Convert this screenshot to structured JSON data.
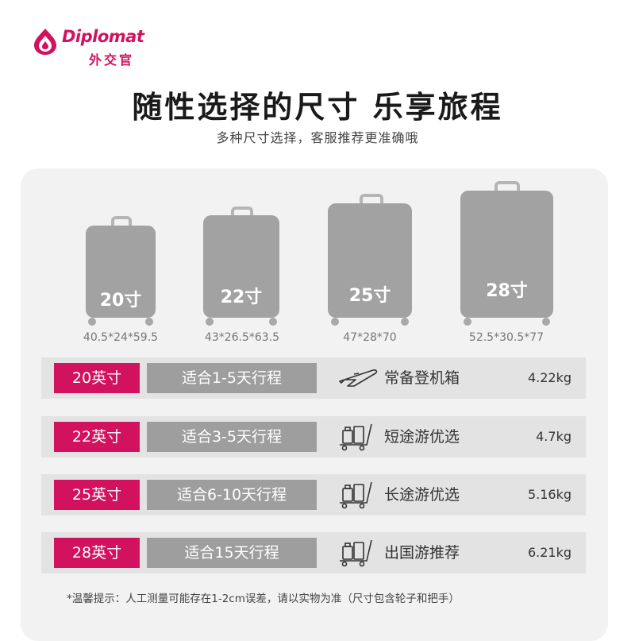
{
  "brand": {
    "name": "Diplomat",
    "cn_name": "外交官"
  },
  "headline": "随性选择的尺寸 乐享旅程",
  "subline": "多种尺寸选择，客服推荐更准确哦",
  "cases": [
    {
      "size": "20寸",
      "dims": "40.5*24*59.5"
    },
    {
      "size": "22寸",
      "dims": "43*26.5*63.5"
    },
    {
      "size": "25寸",
      "dims": "47*28*70"
    },
    {
      "size": "28寸",
      "dims": "52.5*30.5*77"
    }
  ],
  "rows": [
    {
      "inch": "20英寸",
      "trip": "适合1-5天行程",
      "icon": "airplane-icon",
      "desc": "常备登机箱",
      "weight": "4.22kg"
    },
    {
      "inch": "22英寸",
      "trip": "适合3-5天行程",
      "icon": "luggage-cart-icon",
      "desc": "短途游优选",
      "weight": "4.7kg"
    },
    {
      "inch": "25英寸",
      "trip": "适合6-10天行程",
      "icon": "luggage-cart-icon",
      "desc": "长途游优选",
      "weight": "5.16kg"
    },
    {
      "inch": "28英寸",
      "trip": "适合15天行程",
      "icon": "luggage-cart-icon",
      "desc": "出国游推荐",
      "weight": "6.21kg"
    }
  ],
  "note": "*温馨提示：人工测量可能存在1-2cm误差，请以实物为准（尺寸包含轮子和把手）",
  "colors": {
    "accent": "#d3125f",
    "case": "#a2a2a2",
    "trip_box": "#9e9e9e",
    "row_bg": "#e3e3e3",
    "card_bg": "#f2f2f2"
  }
}
